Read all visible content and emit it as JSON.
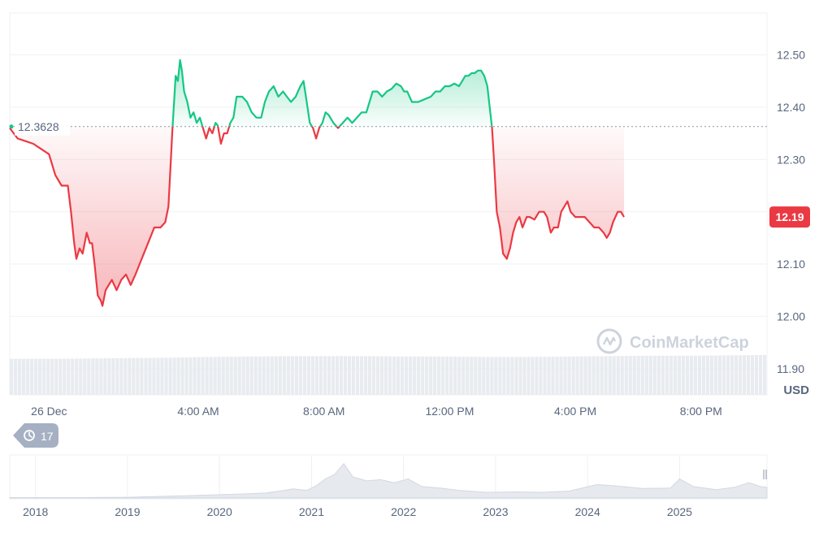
{
  "chart_data": {
    "type": "line",
    "baseline": 12.3628,
    "baseline_label": "12.3628",
    "current_price": 12.19,
    "current_label": "12.19",
    "unit": "USD",
    "watermark": "CoinMarketCap",
    "history_badge": "17",
    "ylim": [
      11.85,
      12.58
    ],
    "y_ticks": [
      {
        "value": 12.5,
        "label": "12.50"
      },
      {
        "value": 12.4,
        "label": "12.40"
      },
      {
        "value": 12.3,
        "label": "12.30"
      },
      {
        "value": 12.1,
        "label": "12.10"
      },
      {
        "value": 12.0,
        "label": "12.00"
      },
      {
        "value": 11.9,
        "label": "11.90"
      }
    ],
    "x_ticks": [
      "26 Dec",
      "4:00 AM",
      "8:00 AM",
      "12:00 PM",
      "4:00 PM",
      "8:00 PM"
    ],
    "x_tick_hours": [
      -0.75,
      4,
      8,
      12,
      16,
      20
    ],
    "xlim_hours": [
      -2,
      22.1
    ],
    "series": [
      {
        "up_color": "#16c784",
        "down_color": "#ea3943",
        "points": [
          [
            -2.0,
            12.36
          ],
          [
            -1.75,
            12.34
          ],
          [
            -1.5,
            12.335
          ],
          [
            -1.25,
            12.33
          ],
          [
            -1.0,
            12.32
          ],
          [
            -0.75,
            12.31
          ],
          [
            -0.55,
            12.27
          ],
          [
            -0.35,
            12.25
          ],
          [
            -0.15,
            12.25
          ],
          [
            -0.05,
            12.2
          ],
          [
            0.05,
            12.14
          ],
          [
            0.12,
            12.11
          ],
          [
            0.22,
            12.13
          ],
          [
            0.32,
            12.12
          ],
          [
            0.45,
            12.16
          ],
          [
            0.55,
            12.14
          ],
          [
            0.62,
            12.14
          ],
          [
            0.7,
            12.1
          ],
          [
            0.8,
            12.04
          ],
          [
            0.9,
            12.03
          ],
          [
            0.95,
            12.02
          ],
          [
            1.05,
            12.05
          ],
          [
            1.25,
            12.07
          ],
          [
            1.4,
            12.05
          ],
          [
            1.55,
            12.07
          ],
          [
            1.7,
            12.08
          ],
          [
            1.85,
            12.06
          ],
          [
            2.0,
            12.08
          ],
          [
            2.2,
            12.11
          ],
          [
            2.4,
            12.14
          ],
          [
            2.6,
            12.17
          ],
          [
            2.8,
            12.17
          ],
          [
            2.95,
            12.18
          ],
          [
            3.05,
            12.21
          ],
          [
            3.12,
            12.29
          ],
          [
            3.18,
            12.36
          ],
          [
            3.28,
            12.46
          ],
          [
            3.35,
            12.45
          ],
          [
            3.42,
            12.49
          ],
          [
            3.48,
            12.47
          ],
          [
            3.55,
            12.43
          ],
          [
            3.65,
            12.41
          ],
          [
            3.75,
            12.38
          ],
          [
            3.85,
            12.39
          ],
          [
            3.95,
            12.37
          ],
          [
            4.05,
            12.38
          ],
          [
            4.15,
            12.36
          ],
          [
            4.25,
            12.34
          ],
          [
            4.35,
            12.36
          ],
          [
            4.45,
            12.35
          ],
          [
            4.55,
            12.37
          ],
          [
            4.62,
            12.365
          ],
          [
            4.72,
            12.33
          ],
          [
            4.82,
            12.35
          ],
          [
            4.92,
            12.35
          ],
          [
            5.02,
            12.37
          ],
          [
            5.12,
            12.38
          ],
          [
            5.22,
            12.42
          ],
          [
            5.4,
            12.42
          ],
          [
            5.55,
            12.41
          ],
          [
            5.7,
            12.39
          ],
          [
            5.85,
            12.38
          ],
          [
            6.0,
            12.38
          ],
          [
            6.12,
            12.41
          ],
          [
            6.25,
            12.43
          ],
          [
            6.4,
            12.44
          ],
          [
            6.55,
            12.42
          ],
          [
            6.7,
            12.43
          ],
          [
            6.82,
            12.42
          ],
          [
            6.95,
            12.41
          ],
          [
            7.1,
            12.42
          ],
          [
            7.25,
            12.44
          ],
          [
            7.35,
            12.45
          ],
          [
            7.45,
            12.41
          ],
          [
            7.55,
            12.37
          ],
          [
            7.65,
            12.36
          ],
          [
            7.75,
            12.34
          ],
          [
            7.85,
            12.36
          ],
          [
            7.95,
            12.37
          ],
          [
            8.05,
            12.39
          ],
          [
            8.15,
            12.385
          ],
          [
            8.3,
            12.37
          ],
          [
            8.45,
            12.36
          ],
          [
            8.6,
            12.37
          ],
          [
            8.75,
            12.38
          ],
          [
            8.9,
            12.37
          ],
          [
            9.05,
            12.38
          ],
          [
            9.2,
            12.39
          ],
          [
            9.35,
            12.39
          ],
          [
            9.45,
            12.41
          ],
          [
            9.55,
            12.43
          ],
          [
            9.7,
            12.43
          ],
          [
            9.85,
            12.42
          ],
          [
            10.0,
            12.43
          ],
          [
            10.15,
            12.435
          ],
          [
            10.3,
            12.445
          ],
          [
            10.45,
            12.44
          ],
          [
            10.55,
            12.43
          ],
          [
            10.65,
            12.43
          ],
          [
            10.8,
            12.41
          ],
          [
            11.0,
            12.41
          ],
          [
            11.2,
            12.415
          ],
          [
            11.4,
            12.42
          ],
          [
            11.55,
            12.43
          ],
          [
            11.7,
            12.43
          ],
          [
            11.85,
            12.44
          ],
          [
            12.0,
            12.44
          ],
          [
            12.15,
            12.445
          ],
          [
            12.3,
            12.44
          ],
          [
            12.4,
            12.45
          ],
          [
            12.5,
            12.46
          ],
          [
            12.6,
            12.46
          ],
          [
            12.7,
            12.465
          ],
          [
            12.8,
            12.465
          ],
          [
            12.9,
            12.47
          ],
          [
            13.0,
            12.47
          ],
          [
            13.1,
            12.46
          ],
          [
            13.2,
            12.44
          ],
          [
            13.35,
            12.36
          ],
          [
            13.42,
            12.29
          ],
          [
            13.5,
            12.2
          ],
          [
            13.6,
            12.17
          ],
          [
            13.7,
            12.12
          ],
          [
            13.82,
            12.11
          ],
          [
            13.92,
            12.13
          ],
          [
            14.02,
            12.16
          ],
          [
            14.12,
            12.18
          ],
          [
            14.22,
            12.19
          ],
          [
            14.32,
            12.17
          ],
          [
            14.45,
            12.19
          ],
          [
            14.55,
            12.19
          ],
          [
            14.7,
            12.185
          ],
          [
            14.85,
            12.2
          ],
          [
            15.0,
            12.2
          ],
          [
            15.1,
            12.19
          ],
          [
            15.22,
            12.16
          ],
          [
            15.32,
            12.17
          ],
          [
            15.45,
            12.17
          ],
          [
            15.55,
            12.2
          ],
          [
            15.65,
            12.21
          ],
          [
            15.75,
            12.22
          ],
          [
            15.85,
            12.2
          ],
          [
            16.0,
            12.19
          ],
          [
            16.15,
            12.19
          ],
          [
            16.3,
            12.19
          ],
          [
            16.45,
            12.18
          ],
          [
            16.6,
            12.17
          ],
          [
            16.75,
            12.17
          ],
          [
            16.9,
            12.16
          ],
          [
            17.0,
            12.15
          ],
          [
            17.1,
            12.16
          ],
          [
            17.2,
            12.18
          ],
          [
            17.35,
            12.2
          ],
          [
            17.45,
            12.2
          ],
          [
            17.55,
            12.19
          ]
        ]
      }
    ],
    "volume": {
      "color": "#e8ebef",
      "levels": [
        0.93,
        0.93,
        0.94,
        0.95,
        0.96,
        0.98,
        0.99,
        1.0,
        1.0,
        1.0,
        0.99,
        0.99,
        0.98,
        0.98,
        0.99,
        1.0,
        1.01,
        1.01,
        1.02,
        1.03
      ]
    },
    "history": {
      "x_ticks": [
        "2018",
        "2019",
        "2020",
        "2021",
        "2022",
        "2023",
        "2024",
        "2025"
      ],
      "x_tick_years": [
        2018.0,
        2019.0,
        2020.0,
        2021.0,
        2022.0,
        2023.0,
        2024.0,
        2025.0
      ],
      "xlim_years": [
        2017.72,
        2025.95
      ],
      "ylim": [
        0,
        1
      ],
      "points": [
        [
          2017.72,
          0.01
        ],
        [
          2018.5,
          0.01
        ],
        [
          2019.0,
          0.02
        ],
        [
          2019.5,
          0.05
        ],
        [
          2019.9,
          0.08
        ],
        [
          2020.2,
          0.1
        ],
        [
          2020.5,
          0.13
        ],
        [
          2020.7,
          0.2
        ],
        [
          2020.8,
          0.24
        ],
        [
          2020.95,
          0.2
        ],
        [
          2021.05,
          0.32
        ],
        [
          2021.15,
          0.5
        ],
        [
          2021.25,
          0.62
        ],
        [
          2021.35,
          0.9
        ],
        [
          2021.45,
          0.55
        ],
        [
          2021.6,
          0.45
        ],
        [
          2021.75,
          0.48
        ],
        [
          2021.9,
          0.4
        ],
        [
          2022.05,
          0.5
        ],
        [
          2022.2,
          0.3
        ],
        [
          2022.4,
          0.26
        ],
        [
          2022.6,
          0.2
        ],
        [
          2022.9,
          0.15
        ],
        [
          2023.2,
          0.16
        ],
        [
          2023.5,
          0.15
        ],
        [
          2023.8,
          0.18
        ],
        [
          2024.1,
          0.35
        ],
        [
          2024.3,
          0.32
        ],
        [
          2024.6,
          0.25
        ],
        [
          2024.9,
          0.26
        ],
        [
          2025.0,
          0.5
        ],
        [
          2025.15,
          0.3
        ],
        [
          2025.4,
          0.22
        ],
        [
          2025.6,
          0.28
        ],
        [
          2025.75,
          0.4
        ],
        [
          2025.88,
          0.3
        ],
        [
          2025.95,
          0.28
        ]
      ]
    }
  }
}
